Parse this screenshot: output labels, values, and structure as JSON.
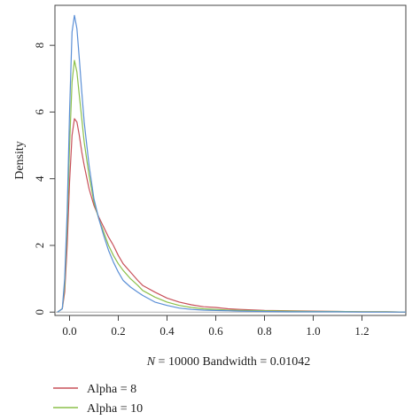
{
  "chart_data": {
    "type": "line",
    "title": "",
    "xlabel_italic": "N",
    "xlabel_rest": " = 10000 Bandwidth = 0.01042",
    "ylabel": "Density",
    "xlim": [
      -0.06,
      1.38
    ],
    "ylim": [
      -0.1,
      9.2
    ],
    "x_ticks": [
      0.0,
      0.2,
      0.4,
      0.6,
      0.8,
      1.0,
      1.2
    ],
    "x_tick_labels": [
      "0.0",
      "0.2",
      "0.4",
      "0.6",
      "0.8",
      "1.0",
      "1.2"
    ],
    "y_ticks": [
      0,
      2,
      4,
      6,
      8
    ],
    "y_tick_labels": [
      "0",
      "2",
      "4",
      "6",
      "8"
    ],
    "baseline": 0,
    "baseline_color": "#b0b0b0",
    "grid": false,
    "legend_position": "bottom-left, below plot",
    "series": [
      {
        "name": "Alpha = 8",
        "color": "#c8505a",
        "x": [
          -0.05,
          -0.03,
          -0.02,
          -0.01,
          0.0,
          0.01,
          0.02,
          0.03,
          0.04,
          0.05,
          0.06,
          0.08,
          0.1,
          0.12,
          0.14,
          0.16,
          0.18,
          0.2,
          0.22,
          0.25,
          0.28,
          0.3,
          0.35,
          0.4,
          0.45,
          0.5,
          0.55,
          0.6,
          0.65,
          0.7,
          0.8,
          0.9,
          1.0,
          1.1,
          1.2,
          1.3,
          1.38
        ],
        "y": [
          0.0,
          0.1,
          0.6,
          2.0,
          3.9,
          5.3,
          5.8,
          5.7,
          5.3,
          4.8,
          4.4,
          3.7,
          3.2,
          2.85,
          2.55,
          2.25,
          2.0,
          1.7,
          1.45,
          1.2,
          0.95,
          0.8,
          0.6,
          0.42,
          0.3,
          0.22,
          0.16,
          0.14,
          0.1,
          0.08,
          0.05,
          0.04,
          0.03,
          0.02,
          0.01,
          0.01,
          0.0
        ]
      },
      {
        "name": "Alpha = 10",
        "color": "#8cc04a",
        "x": [
          -0.05,
          -0.03,
          -0.02,
          -0.01,
          0.0,
          0.01,
          0.02,
          0.03,
          0.04,
          0.05,
          0.06,
          0.08,
          0.1,
          0.12,
          0.14,
          0.16,
          0.18,
          0.2,
          0.22,
          0.25,
          0.28,
          0.3,
          0.35,
          0.4,
          0.45,
          0.5,
          0.55,
          0.6,
          0.65,
          0.7,
          0.8,
          0.9,
          1.0,
          1.1,
          1.2,
          1.3,
          1.38
        ],
        "y": [
          0.0,
          0.1,
          0.8,
          2.6,
          5.0,
          6.9,
          7.55,
          7.2,
          6.5,
          5.8,
          5.1,
          4.1,
          3.3,
          2.8,
          2.4,
          2.0,
          1.7,
          1.45,
          1.25,
          1.0,
          0.8,
          0.65,
          0.45,
          0.3,
          0.2,
          0.14,
          0.1,
          0.08,
          0.06,
          0.05,
          0.04,
          0.03,
          0.02,
          0.02,
          0.01,
          0.01,
          0.0
        ]
      },
      {
        "name": "",
        "color": "#5b8fd6",
        "x": [
          -0.05,
          -0.03,
          -0.02,
          -0.01,
          0.0,
          0.01,
          0.02,
          0.03,
          0.04,
          0.05,
          0.06,
          0.08,
          0.1,
          0.12,
          0.14,
          0.16,
          0.18,
          0.2,
          0.22,
          0.25,
          0.28,
          0.3,
          0.35,
          0.4,
          0.45,
          0.5,
          0.55,
          0.6,
          0.65,
          0.7,
          0.8,
          0.9,
          1.0,
          1.1,
          1.2,
          1.3,
          1.38
        ],
        "y": [
          0.0,
          0.1,
          1.0,
          3.0,
          6.0,
          8.4,
          8.9,
          8.5,
          7.6,
          6.6,
          5.7,
          4.4,
          3.4,
          2.8,
          2.3,
          1.85,
          1.5,
          1.2,
          0.95,
          0.75,
          0.6,
          0.5,
          0.3,
          0.2,
          0.12,
          0.08,
          0.06,
          0.05,
          0.04,
          0.03,
          0.02,
          0.01,
          0.01,
          0.01,
          0.0,
          0.0,
          0.0
        ]
      }
    ]
  }
}
